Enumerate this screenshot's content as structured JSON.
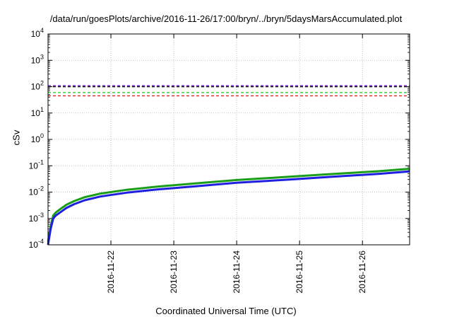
{
  "chart_data": {
    "type": "line",
    "title": "/data/run/goesPlots/archive/2016-11-26/17:00/bryn/../bryn/5daysMarsAccumulated.plot",
    "xlabel": "Coordinated Universal Time (UTC)",
    "ylabel": "cSv",
    "yscale": "log",
    "ylim": [
      0.0001,
      10000
    ],
    "xlim": [
      "2016-11-21T00:00",
      "2016-11-26T18:00"
    ],
    "x_ticks": [
      "2016-11-22",
      "2016-11-23",
      "2016-11-24",
      "2016-11-25",
      "2016-11-26"
    ],
    "y_ticks": [
      {
        "base": "10",
        "exp": "-4"
      },
      {
        "base": "10",
        "exp": "-3"
      },
      {
        "base": "10",
        "exp": "-2"
      },
      {
        "base": "10",
        "exp": "-1"
      },
      {
        "base": "10",
        "exp": "0"
      },
      {
        "base": "10",
        "exp": "1"
      },
      {
        "base": "10",
        "exp": "2"
      },
      {
        "base": "10",
        "exp": "3"
      },
      {
        "base": "10",
        "exp": "4"
      }
    ],
    "grid": true,
    "series": [
      {
        "color": "#1a9e1a",
        "style": "solid",
        "x": [
          "2016-11-21T00:00",
          "2016-11-21T01:00",
          "2016-11-21T02:00",
          "2016-11-21T03:00",
          "2016-11-21T05:00",
          "2016-11-21T07:00",
          "2016-11-21T10:00",
          "2016-11-21T14:00",
          "2016-11-21T20:00",
          "2016-11-22T06:00",
          "2016-11-22T18:00",
          "2016-11-23T08:00",
          "2016-11-24T00:00",
          "2016-11-24T18:00",
          "2016-11-25T12:00",
          "2016-11-26T06:00",
          "2016-11-26T18:00"
        ],
        "y": [
          0.00013,
          0.0005,
          0.0013,
          0.0017,
          0.0024,
          0.0033,
          0.0046,
          0.0064,
          0.0088,
          0.0123,
          0.0163,
          0.0212,
          0.0288,
          0.037,
          0.0485,
          0.062,
          0.077
        ]
      },
      {
        "color": "#1f1fe0",
        "style": "solid",
        "x": [
          "2016-11-21T00:00",
          "2016-11-21T01:00",
          "2016-11-21T02:00",
          "2016-11-21T03:00",
          "2016-11-21T05:00",
          "2016-11-21T07:00",
          "2016-11-21T10:00",
          "2016-11-21T14:00",
          "2016-11-21T20:00",
          "2016-11-22T06:00",
          "2016-11-22T18:00",
          "2016-11-23T08:00",
          "2016-11-24T00:00",
          "2016-11-24T18:00",
          "2016-11-25T12:00",
          "2016-11-26T06:00",
          "2016-11-26T18:00"
        ],
        "y": [
          0.0001,
          0.0004,
          0.001,
          0.0013,
          0.0018,
          0.0025,
          0.0035,
          0.0049,
          0.0068,
          0.0095,
          0.0127,
          0.0165,
          0.0226,
          0.029,
          0.038,
          0.049,
          0.061
        ]
      },
      {
        "color": "#000000",
        "style": "dashed",
        "y": 100
      },
      {
        "color": "#8a2be2",
        "style": "dashed",
        "y": 110
      },
      {
        "color": "#32cd32",
        "style": "dashed",
        "y": 60
      },
      {
        "color": "#e02020",
        "style": "dashed",
        "y": 45
      }
    ]
  }
}
